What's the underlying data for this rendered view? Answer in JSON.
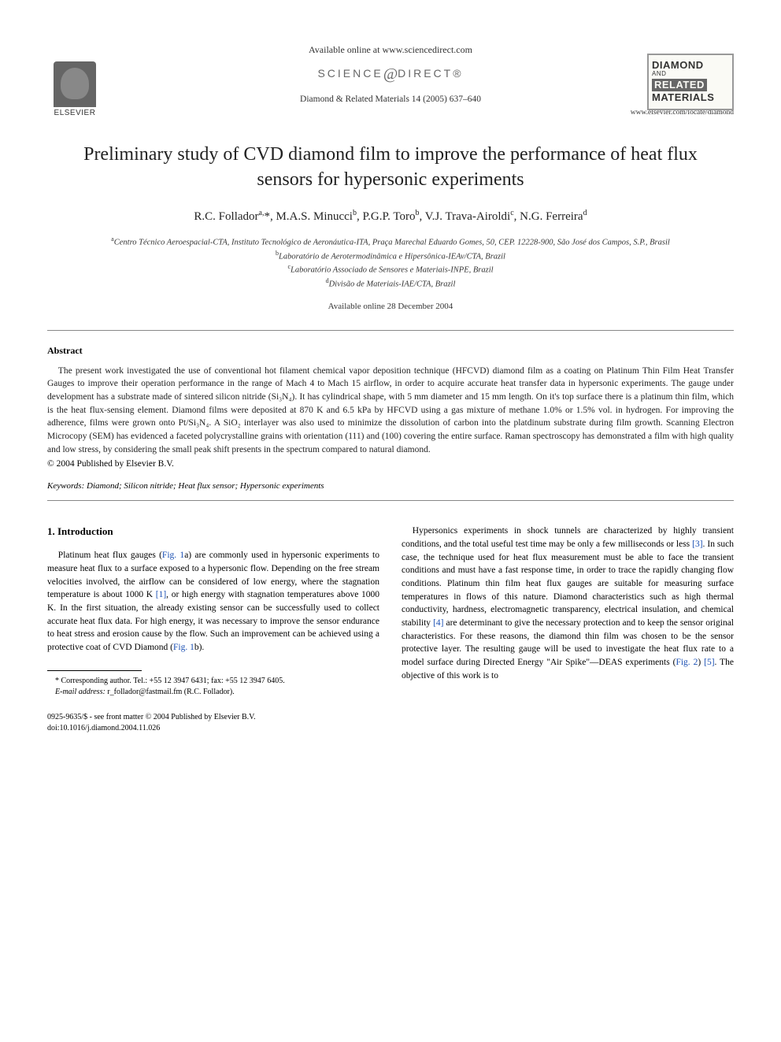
{
  "header": {
    "publisher_name": "ELSEVIER",
    "available_text": "Available online at www.sciencedirect.com",
    "sciencedirect_left": "SCIENCE",
    "sciencedirect_right": "DIRECT®",
    "journal_ref": "Diamond & Related Materials 14 (2005) 637–640",
    "cover_line1": "DIAMOND",
    "cover_and": "AND",
    "cover_line2": "RELATED",
    "cover_line3": "MATERIALS",
    "journal_url": "www.elsevier.com/locate/diamond"
  },
  "article": {
    "title": "Preliminary study of CVD diamond film to improve the performance of heat flux sensors for hypersonic experiments",
    "authors_html": "R.C. Follador<sup>a,</sup>*, M.A.S. Minucci<sup>b</sup>, P.G.P. Toro<sup>b</sup>, V.J. Trava-Airoldi<sup>c</sup>, N.G. Ferreira<sup>d</sup>",
    "affiliations": [
      "<sup>a</sup>Centro Técnico Aeroespacial-CTA, Instituto Tecnológico de Aeronáutica-ITA, Praça Marechal Eduardo Gomes, 50, CEP. 12228-900, São José dos Campos, S.P., Brasil",
      "<sup>b</sup>Laboratório de Aerotermodinâmica e Hipersônica-IEAv/CTA, Brazil",
      "<sup>c</sup>Laboratório Associado de Sensores e Materiais-INPE, Brazil",
      "<sup>d</sup>Divisão de Materiais-IAE/CTA, Brazil"
    ],
    "pub_date": "Available online 28 December 2004"
  },
  "abstract": {
    "heading": "Abstract",
    "text": "The present work investigated the use of conventional hot filament chemical vapor deposition technique (HFCVD) diamond film as a coating on Platinum Thin Film Heat Transfer Gauges to improve their operation performance in the range of Mach 4 to Mach 15 airflow, in order to acquire accurate heat transfer data in hypersonic experiments. The gauge under development has a substrate made of sintered silicon nitride (Si₃N₄). It has cylindrical shape, with 5 mm diameter and 15 mm length. On it's top surface there is a platinum thin film, which is the heat flux-sensing element. Diamond films were deposited at 870 K and 6.5 kPa by HFCVD using a gas mixture of methane 1.0% or 1.5% vol. in hydrogen. For improving the adherence, films were grown onto Pt/Si₃N₄. A SiO₂ interlayer was also used to minimize the dissolution of carbon into the platdinum substrate during film growth. Scanning Electron Microcopy (SEM) has evidenced a faceted polycrystalline grains with orientation (111) and (100) covering the entire surface. Raman spectroscopy has demonstrated a film with high quality and low stress, by considering the small peak shift presents in the spectrum compared to natural diamond.",
    "copyright": "© 2004 Published by Elsevier B.V.",
    "keywords_label": "Keywords:",
    "keywords": " Diamond; Silicon nitride; Heat flux sensor; Hypersonic experiments"
  },
  "body": {
    "section_heading": "1. Introduction",
    "col1_html": "Platinum heat flux gauges (<span class=\"ref-link\">Fig. 1</span>a) are commonly used in hypersonic experiments to measure heat flux to a surface exposed to a hypersonic flow. Depending on the free stream velocities involved, the airflow can be considered of low energy, where the stagnation temperature is about 1000 K <span class=\"ref-link\">[1]</span>, or high energy with stagnation temperatures above 1000 K. In the first situation, the already existing sensor can be successfully used to collect accurate heat flux data. For high energy, it was necessary to improve the sensor endurance to heat stress and erosion cause by the flow. Such an improvement can be achieved using a protective coat of CVD Diamond (<span class=\"ref-link\">Fig. 1</span>b).",
    "col2_html": "Hypersonics experiments in shock tunnels are characterized by highly transient conditions, and the total useful test time may be only a few milliseconds or less <span class=\"ref-link\">[3]</span>. In such case, the technique used for heat flux measurement must be able to face the transient conditions and must have a fast response time, in order to trace the rapidly changing flow conditions. Platinum thin film heat flux gauges are suitable for measuring surface temperatures in flows of this nature. Diamond characteristics such as high thermal conductivity, hardness, electromagnetic transparency, electrical insulation, and chemical stability <span class=\"ref-link\">[4]</span> are determinant to give the necessary protection and to keep the sensor original characteristics. For these reasons, the diamond thin film was chosen to be the sensor protective layer. The resulting gauge will be used to investigate the heat flux rate to a model surface during Directed Energy \"Air Spike\"—DEAS experiments (<span class=\"ref-link\">Fig. 2</span>) <span class=\"ref-link\">[5]</span>. The objective of this work is to"
  },
  "footnote": {
    "corresponding": "* Corresponding author. Tel.: +55 12 3947 6431; fax: +55 12 3947 6405.",
    "email_label": "E-mail address:",
    "email": " r_follador@fastmail.fm (R.C. Follador)."
  },
  "footer": {
    "line1": "0925-9635/$ - see front matter © 2004 Published by Elsevier B.V.",
    "line2": "doi:10.1016/j.diamond.2004.11.026"
  }
}
